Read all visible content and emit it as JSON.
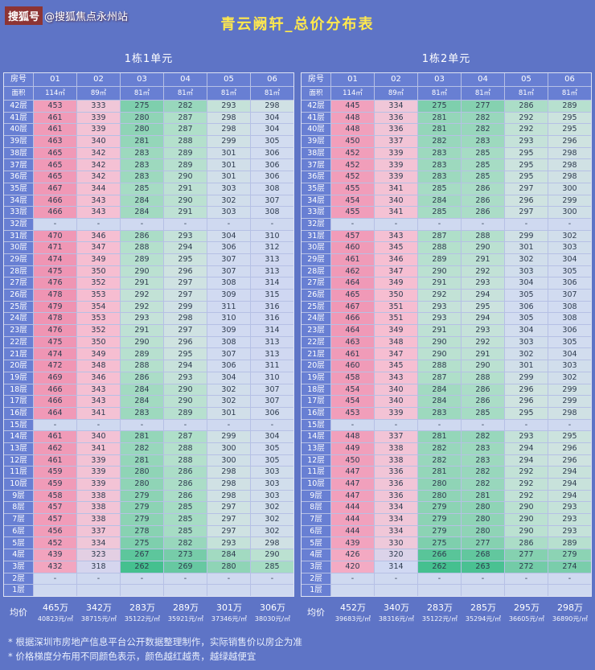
{
  "watermark": {
    "tag": "搜狐号",
    "handle": "@搜狐焦点永州站"
  },
  "footnotes": [
    "* 根据深圳市房地产信息平台公开数据整理制作，实际销售价以房企为准",
    "* 价格梯度分布用不同颜色表示，颜色越红越贵，越绿越便宜"
  ],
  "style": {
    "page_bg": "#5e74c6",
    "label_bg": "#687fd3",
    "title_color": "#ffe84d",
    "neutral_cell": "#cfd9f0",
    "scale_stops": [
      [
        262,
        "#45c08f"
      ],
      [
        270,
        "#6cc9a3"
      ],
      [
        280,
        "#8fd4b6"
      ],
      [
        288,
        "#b4e0cc"
      ],
      [
        296,
        "#cfe3e0"
      ],
      [
        305,
        "#d2dcf0"
      ],
      [
        316,
        "#cfd7f2"
      ],
      [
        326,
        "#ecccdc"
      ],
      [
        345,
        "#f6bfd2"
      ],
      [
        420,
        "#f3abc4"
      ],
      [
        480,
        "#ef93b2"
      ]
    ]
  },
  "chart_data": {
    "type": "table",
    "title": "青云阙轩_总价分布表",
    "corner_top": "房号",
    "corner_bottom": "面积",
    "avg_label": "均价",
    "tables": [
      {
        "subtitle": "1栋1单元",
        "units": [
          "01",
          "02",
          "03",
          "04",
          "05",
          "06"
        ],
        "areas": [
          "114㎡",
          "89㎡",
          "81㎡",
          "81㎡",
          "81㎡",
          "81㎡"
        ],
        "floors": [
          "42层",
          "41层",
          "40层",
          "39层",
          "38层",
          "37层",
          "36层",
          "35层",
          "34层",
          "33层",
          "32层",
          "31层",
          "30层",
          "29层",
          "28层",
          "27层",
          "26层",
          "25层",
          "24层",
          "23层",
          "22层",
          "21层",
          "20层",
          "19层",
          "18层",
          "17层",
          "16层",
          "15层",
          "14层",
          "13层",
          "12层",
          "11层",
          "10层",
          "9层",
          "8层",
          "7层",
          "6层",
          "5层",
          "4层",
          "3层",
          "2层",
          "1层"
        ],
        "values": [
          [
            453,
            333,
            275,
            282,
            293,
            298
          ],
          [
            461,
            339,
            280,
            287,
            298,
            304
          ],
          [
            461,
            339,
            280,
            287,
            298,
            304
          ],
          [
            463,
            340,
            281,
            288,
            299,
            305
          ],
          [
            465,
            342,
            283,
            289,
            301,
            306
          ],
          [
            465,
            342,
            283,
            289,
            301,
            306
          ],
          [
            465,
            342,
            283,
            290,
            301,
            306
          ],
          [
            467,
            344,
            285,
            291,
            303,
            308
          ],
          [
            466,
            343,
            284,
            290,
            302,
            307
          ],
          [
            466,
            343,
            284,
            291,
            303,
            308
          ],
          [
            "-",
            "-",
            "-",
            "-",
            "-",
            "-"
          ],
          [
            470,
            346,
            286,
            293,
            304,
            310
          ],
          [
            471,
            347,
            288,
            294,
            306,
            312
          ],
          [
            474,
            349,
            289,
            295,
            307,
            313
          ],
          [
            475,
            350,
            290,
            296,
            307,
            313
          ],
          [
            476,
            352,
            291,
            297,
            308,
            314
          ],
          [
            478,
            353,
            292,
            297,
            309,
            315
          ],
          [
            479,
            354,
            292,
            299,
            311,
            316
          ],
          [
            478,
            353,
            293,
            298,
            310,
            316
          ],
          [
            476,
            352,
            291,
            297,
            309,
            314
          ],
          [
            475,
            350,
            290,
            296,
            308,
            313
          ],
          [
            474,
            349,
            289,
            295,
            307,
            313
          ],
          [
            472,
            348,
            288,
            294,
            306,
            311
          ],
          [
            469,
            346,
            286,
            293,
            304,
            310
          ],
          [
            466,
            343,
            284,
            290,
            302,
            307
          ],
          [
            466,
            343,
            284,
            290,
            302,
            307
          ],
          [
            464,
            341,
            283,
            289,
            301,
            306
          ],
          [
            "-",
            "-",
            "-",
            "-",
            "-",
            "-"
          ],
          [
            461,
            340,
            281,
            287,
            299,
            304
          ],
          [
            462,
            341,
            282,
            288,
            300,
            305
          ],
          [
            461,
            339,
            281,
            288,
            300,
            305
          ],
          [
            459,
            339,
            280,
            286,
            298,
            303
          ],
          [
            459,
            339,
            280,
            286,
            298,
            303
          ],
          [
            458,
            338,
            279,
            286,
            298,
            303
          ],
          [
            457,
            338,
            279,
            285,
            297,
            302
          ],
          [
            457,
            338,
            279,
            285,
            297,
            302
          ],
          [
            456,
            337,
            278,
            285,
            297,
            302
          ],
          [
            452,
            334,
            275,
            282,
            293,
            298
          ],
          [
            439,
            323,
            267,
            273,
            284,
            290
          ],
          [
            432,
            318,
            262,
            269,
            280,
            285
          ],
          [
            "-",
            "-",
            "-",
            "-",
            "-",
            "-"
          ],
          [
            "",
            "",
            "",
            "",
            "",
            ""
          ]
        ],
        "avg": [
          {
            "price": "465万",
            "unit_price": "40823元/㎡"
          },
          {
            "price": "342万",
            "unit_price": "38715元/㎡"
          },
          {
            "price": "283万",
            "unit_price": "35122元/㎡"
          },
          {
            "price": "289万",
            "unit_price": "35921元/㎡"
          },
          {
            "price": "301万",
            "unit_price": "37346元/㎡"
          },
          {
            "price": "306万",
            "unit_price": "38030元/㎡"
          }
        ]
      },
      {
        "subtitle": "1栋2单元",
        "units": [
          "01",
          "02",
          "03",
          "04",
          "05",
          "06"
        ],
        "areas": [
          "114㎡",
          "89㎡",
          "81㎡",
          "81㎡",
          "81㎡",
          "81㎡"
        ],
        "floors": [
          "42层",
          "41层",
          "40层",
          "39层",
          "38层",
          "37层",
          "36层",
          "35层",
          "34层",
          "33层",
          "32层",
          "31层",
          "30层",
          "29层",
          "28层",
          "27层",
          "26层",
          "25层",
          "24层",
          "23层",
          "22层",
          "21层",
          "20层",
          "19层",
          "18层",
          "17层",
          "16层",
          "15层",
          "14层",
          "13层",
          "12层",
          "11层",
          "10层",
          "9层",
          "8层",
          "7层",
          "6层",
          "5层",
          "4层",
          "3层",
          "2层",
          "1层"
        ],
        "values": [
          [
            445,
            334,
            275,
            277,
            286,
            289
          ],
          [
            448,
            336,
            281,
            282,
            292,
            295
          ],
          [
            448,
            336,
            281,
            282,
            292,
            295
          ],
          [
            450,
            337,
            282,
            283,
            293,
            296
          ],
          [
            452,
            339,
            283,
            285,
            295,
            298
          ],
          [
            452,
            339,
            283,
            285,
            295,
            298
          ],
          [
            452,
            339,
            283,
            285,
            295,
            298
          ],
          [
            455,
            341,
            285,
            286,
            297,
            300
          ],
          [
            454,
            340,
            284,
            286,
            296,
            299
          ],
          [
            455,
            341,
            285,
            286,
            297,
            300
          ],
          [
            "-",
            "-",
            "-",
            "-",
            "-",
            "-"
          ],
          [
            457,
            343,
            287,
            288,
            299,
            302
          ],
          [
            460,
            345,
            288,
            290,
            301,
            303
          ],
          [
            461,
            346,
            289,
            291,
            302,
            304
          ],
          [
            462,
            347,
            290,
            292,
            303,
            305
          ],
          [
            464,
            349,
            291,
            293,
            304,
            306
          ],
          [
            465,
            350,
            292,
            294,
            305,
            307
          ],
          [
            467,
            351,
            293,
            295,
            306,
            308
          ],
          [
            466,
            351,
            293,
            294,
            305,
            308
          ],
          [
            464,
            349,
            291,
            293,
            304,
            306
          ],
          [
            463,
            348,
            290,
            292,
            303,
            305
          ],
          [
            461,
            347,
            290,
            291,
            302,
            304
          ],
          [
            460,
            345,
            288,
            290,
            301,
            303
          ],
          [
            458,
            343,
            287,
            288,
            299,
            302
          ],
          [
            454,
            340,
            284,
            286,
            296,
            299
          ],
          [
            454,
            340,
            284,
            286,
            296,
            299
          ],
          [
            453,
            339,
            283,
            285,
            295,
            298
          ],
          [
            "-",
            "-",
            "-",
            "-",
            "-",
            "-"
          ],
          [
            448,
            337,
            281,
            282,
            293,
            295
          ],
          [
            449,
            338,
            282,
            283,
            294,
            296
          ],
          [
            450,
            338,
            282,
            283,
            294,
            296
          ],
          [
            447,
            336,
            281,
            282,
            292,
            294
          ],
          [
            447,
            336,
            280,
            282,
            292,
            294
          ],
          [
            447,
            336,
            280,
            281,
            292,
            294
          ],
          [
            444,
            334,
            279,
            280,
            290,
            293
          ],
          [
            444,
            334,
            279,
            280,
            290,
            293
          ],
          [
            444,
            334,
            279,
            280,
            290,
            293
          ],
          [
            439,
            330,
            275,
            277,
            286,
            289
          ],
          [
            426,
            320,
            266,
            268,
            277,
            279
          ],
          [
            420,
            314,
            262,
            263,
            272,
            274
          ],
          [
            "-",
            "-",
            "-",
            "-",
            "-",
            "-"
          ],
          [
            "",
            "",
            "",
            "",
            "",
            ""
          ]
        ],
        "avg": [
          {
            "price": "452万",
            "unit_price": "39683元/㎡"
          },
          {
            "price": "340万",
            "unit_price": "38316元/㎡"
          },
          {
            "price": "283万",
            "unit_price": "35122元/㎡"
          },
          {
            "price": "285万",
            "unit_price": "35294元/㎡"
          },
          {
            "price": "295万",
            "unit_price": "36605元/㎡"
          },
          {
            "price": "298万",
            "unit_price": "36890元/㎡"
          }
        ]
      }
    ]
  }
}
